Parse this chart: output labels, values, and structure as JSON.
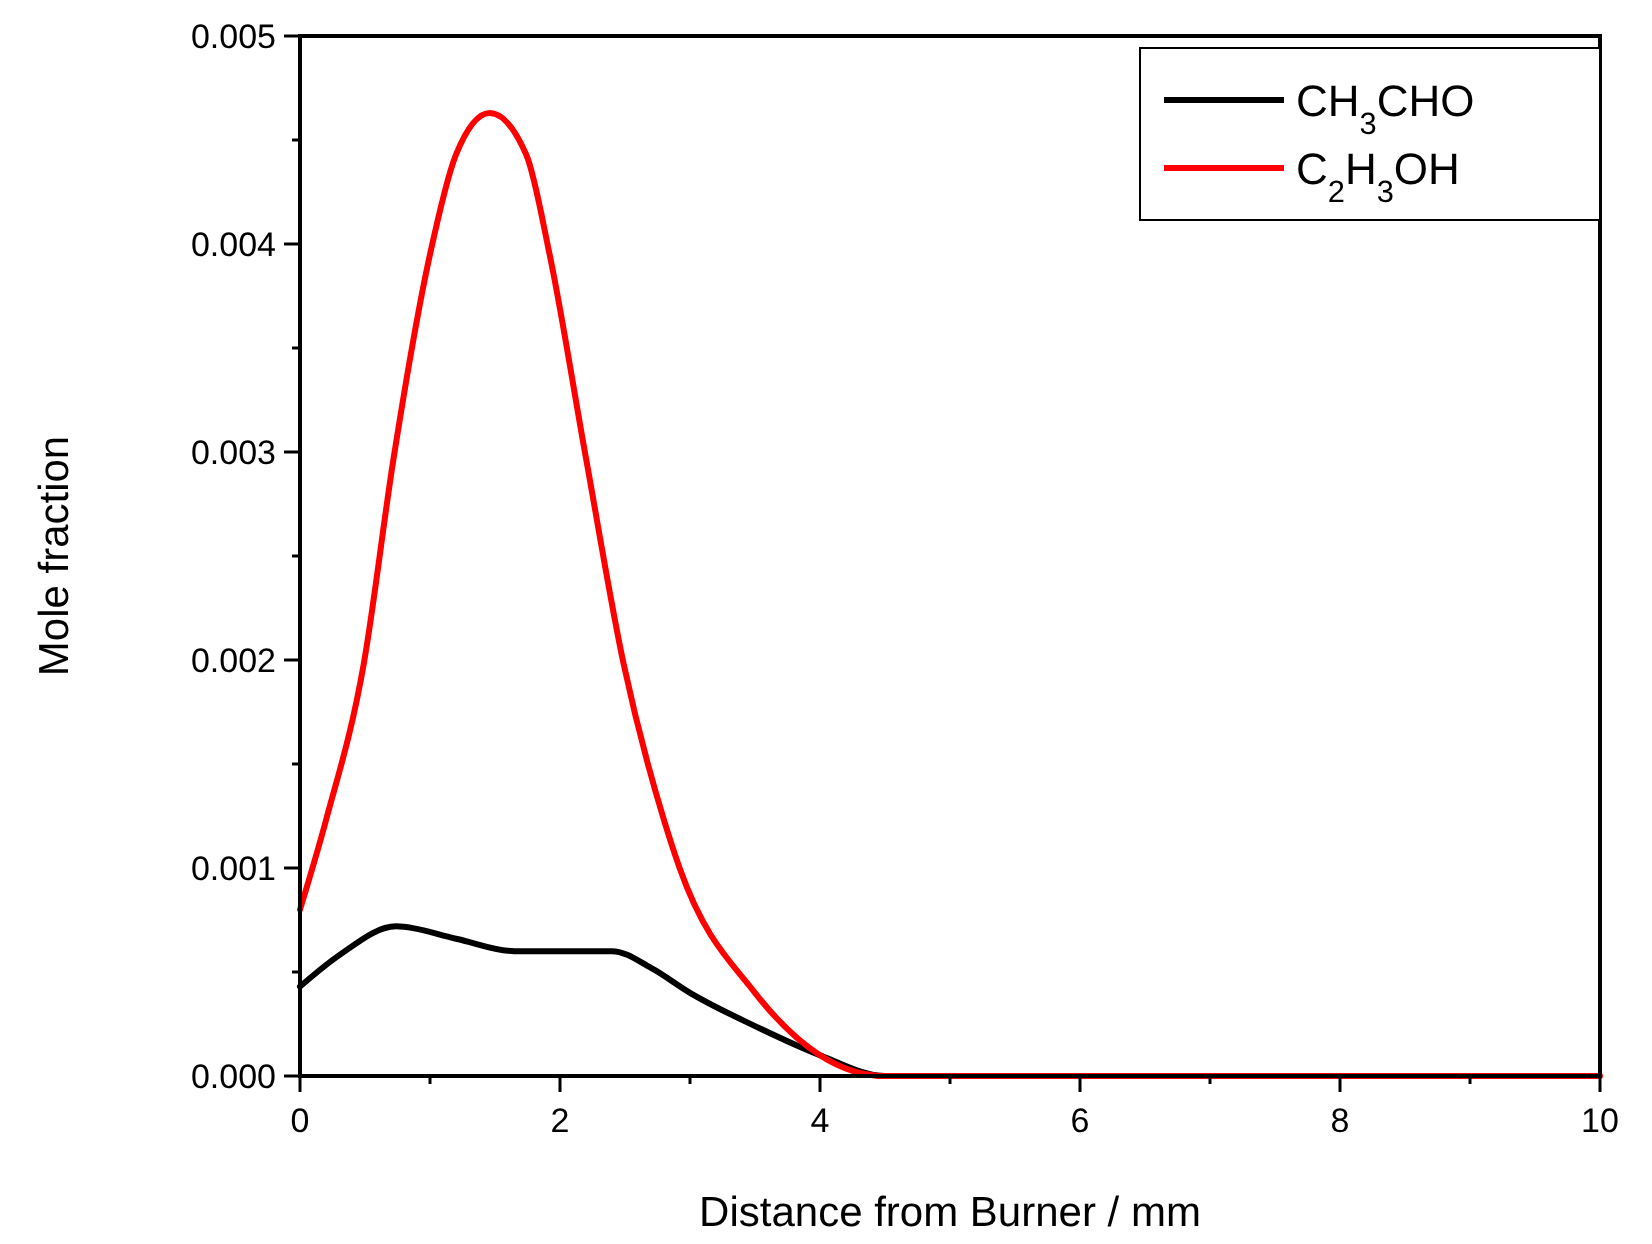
{
  "chart_data": {
    "type": "line",
    "xlabel": "Distance from Burner / mm",
    "ylabel": "Mole fraction",
    "xlim": [
      0,
      10
    ],
    "xticks": [
      0,
      {
        "value": 1,
        "label": null
      },
      2,
      {
        "value": 3,
        "label": null
      },
      4,
      {
        "value": 5,
        "label": null
      },
      6,
      {
        "value": 7,
        "label": null
      },
      8,
      {
        "value": 9,
        "label": null
      },
      10
    ],
    "ylim": [
      0,
      0.005
    ],
    "yticks": [
      {
        "value": 0,
        "label": "0.000"
      },
      {
        "value": 0.0005,
        "label": null
      },
      0.001,
      {
        "value": 0.0015,
        "label": null
      },
      0.002,
      {
        "value": 0.0025,
        "label": null
      },
      0.003,
      {
        "value": 0.0035,
        "label": null
      },
      0.004,
      {
        "value": 0.0045,
        "label": null
      },
      0.005
    ],
    "legend": "top right",
    "grid": false,
    "marker": "none",
    "line_style": "solid",
    "series": [
      {
        "name": "CH$_{3}$CHO",
        "color": "#000000",
        "x": [
          0,
          0.3,
          0.74,
          1.2,
          1.65,
          2.0,
          2.4,
          2.7,
          3.0,
          3.5,
          4.0,
          4.5,
          5.0,
          6.0,
          7.0,
          7.8
        ],
        "values": [
          0.00043,
          0.00058,
          0.00072,
          0.00066,
          0.0006,
          0.0006,
          0.0006,
          0.00052,
          0.0004,
          0.00024,
          0.0001,
          0,
          0,
          0,
          0,
          0
        ]
      },
      {
        "name": "C$_{2}$H$_{3}$OH",
        "color": "#ff0000",
        "x": [
          0,
          0.2,
          0.49,
          0.72,
          1.0,
          1.2,
          1.46,
          1.74,
          1.92,
          2.2,
          2.49,
          2.8,
          2.92,
          3.5,
          4.0,
          4.5,
          5.0,
          6.0,
          8.0,
          10.0
        ],
        "values": [
          0.0008,
          0.00123,
          0.00198,
          0.00297,
          0.00395,
          0.00443,
          0.00463,
          0.00443,
          0.00395,
          0.00297,
          0.00198,
          0.00123,
          0.001,
          0.0004,
          0.0001,
          0,
          0,
          0,
          0,
          0
        ]
      }
    ]
  }
}
